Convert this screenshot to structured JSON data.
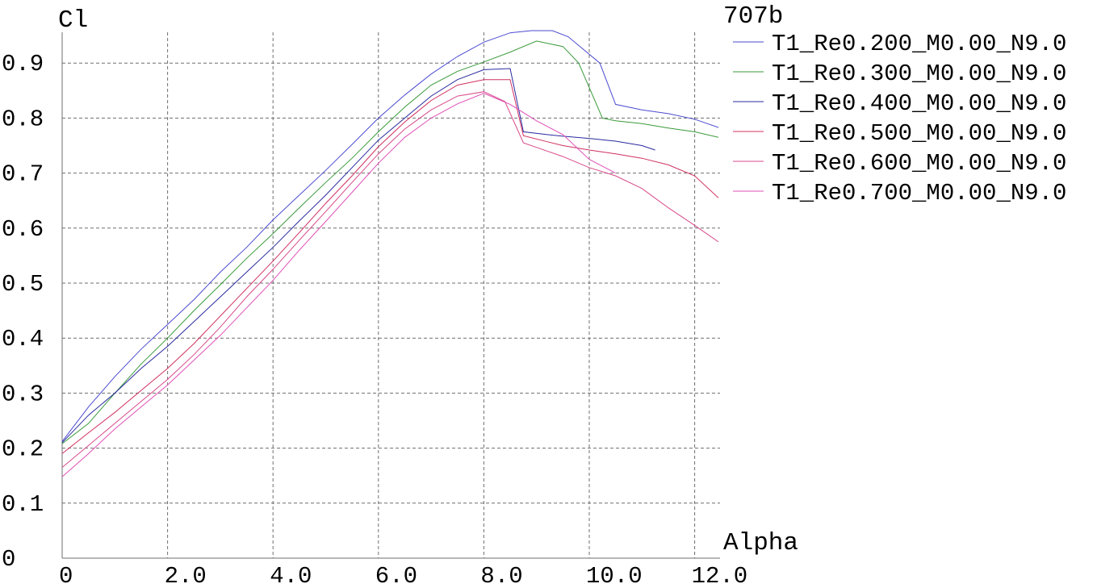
{
  "chart_data": {
    "type": "line",
    "title": "707b",
    "xlabel": "Alpha",
    "ylabel": "Cl",
    "xlim": [
      0,
      12.5
    ],
    "ylim": [
      0,
      0.95
    ],
    "grid": true,
    "legend_position": "top-right",
    "x_ticks": [
      {
        "value": 0,
        "label": "0"
      },
      {
        "value": 2,
        "label": "2.0"
      },
      {
        "value": 4,
        "label": "4.0"
      },
      {
        "value": 6,
        "label": "6.0"
      },
      {
        "value": 8,
        "label": "8.0"
      },
      {
        "value": 10,
        "label": "10.0"
      },
      {
        "value": 12,
        "label": "12.0"
      }
    ],
    "y_ticks": [
      {
        "value": 0,
        "label": "0"
      },
      {
        "value": 0.1,
        "label": "0.1"
      },
      {
        "value": 0.2,
        "label": "0.2"
      },
      {
        "value": 0.3,
        "label": "0.3"
      },
      {
        "value": 0.4,
        "label": "0.4"
      },
      {
        "value": 0.5,
        "label": "0.5"
      },
      {
        "value": 0.6,
        "label": "0.6"
      },
      {
        "value": 0.7,
        "label": "0.7"
      },
      {
        "value": 0.8,
        "label": "0.8"
      },
      {
        "value": 0.9,
        "label": "0.9"
      }
    ],
    "series": [
      {
        "name": "T1_Re0.200_M0.00_N9.0",
        "color": "#4b4bd2",
        "x": [
          0,
          0.5,
          1,
          1.5,
          2,
          2.5,
          3,
          3.5,
          4,
          4.5,
          5,
          5.5,
          6,
          6.5,
          7,
          7.5,
          8,
          8.5,
          8.9,
          9.3,
          9.6,
          10.2,
          10.5,
          11,
          11.5,
          12,
          12.45
        ],
        "y": [
          0.212,
          0.275,
          0.33,
          0.38,
          0.425,
          0.47,
          0.52,
          0.565,
          0.615,
          0.66,
          0.705,
          0.752,
          0.8,
          0.842,
          0.88,
          0.912,
          0.938,
          0.955,
          0.959,
          0.959,
          0.948,
          0.9,
          0.825,
          0.815,
          0.808,
          0.798,
          0.783
        ]
      },
      {
        "name": "T1_Re0.300_M0.00_N9.0",
        "color": "#3a9a3a",
        "x": [
          0,
          0.5,
          1,
          1.5,
          2,
          2.5,
          3,
          3.5,
          4,
          4.5,
          5,
          5.5,
          6,
          6.5,
          7,
          7.5,
          8,
          8.5,
          9,
          9.5,
          9.8,
          10.25,
          10.5,
          11,
          11.5,
          12,
          12.45
        ],
        "y": [
          0.208,
          0.245,
          0.3,
          0.353,
          0.4,
          0.45,
          0.497,
          0.545,
          0.59,
          0.637,
          0.683,
          0.727,
          0.775,
          0.82,
          0.86,
          0.885,
          0.902,
          0.92,
          0.94,
          0.93,
          0.9,
          0.8,
          0.795,
          0.79,
          0.782,
          0.775,
          0.765
        ]
      },
      {
        "name": "T1_Re0.400_M0.00_N9.0",
        "color": "#2a2aa0",
        "x": [
          0,
          0.5,
          1,
          1.5,
          2,
          2.5,
          3,
          3.5,
          4,
          4.5,
          5,
          5.5,
          6,
          6.5,
          7,
          7.5,
          8,
          8.5,
          8.75,
          9.2,
          9.5,
          10,
          10.5,
          11,
          11.25
        ],
        "y": [
          0.21,
          0.26,
          0.3,
          0.345,
          0.385,
          0.43,
          0.475,
          0.52,
          0.565,
          0.613,
          0.66,
          0.71,
          0.76,
          0.8,
          0.84,
          0.87,
          0.888,
          0.89,
          0.775,
          0.77,
          0.767,
          0.763,
          0.758,
          0.75,
          0.742
        ]
      },
      {
        "name": "T1_Re0.500_M0.00_N9.0",
        "color": "#d03060",
        "x": [
          0,
          0.5,
          1,
          1.5,
          2,
          2.5,
          3,
          3.5,
          4,
          4.5,
          5,
          5.5,
          6,
          6.5,
          7,
          7.5,
          8,
          8.5,
          8.75,
          9.2,
          9.5,
          10,
          10.5,
          11,
          11.5,
          12,
          12.45
        ],
        "y": [
          0.19,
          0.228,
          0.265,
          0.305,
          0.345,
          0.39,
          0.44,
          0.49,
          0.54,
          0.592,
          0.645,
          0.695,
          0.748,
          0.793,
          0.832,
          0.86,
          0.87,
          0.87,
          0.768,
          0.757,
          0.75,
          0.742,
          0.735,
          0.727,
          0.715,
          0.695,
          0.655
        ]
      },
      {
        "name": "T1_Re0.600_M0.00_N9.0",
        "color": "#d84a8a",
        "x": [
          0,
          0.5,
          1,
          1.5,
          2,
          2.5,
          3,
          3.5,
          4,
          4.5,
          5,
          5.5,
          6,
          6.5,
          7,
          7.5,
          8,
          8.4,
          8.75,
          9.2,
          9.5,
          10,
          10.5,
          11,
          11.5,
          12,
          12.45
        ],
        "y": [
          0.165,
          0.205,
          0.245,
          0.285,
          0.325,
          0.37,
          0.42,
          0.475,
          0.525,
          0.578,
          0.63,
          0.683,
          0.735,
          0.78,
          0.815,
          0.84,
          0.848,
          0.83,
          0.755,
          0.74,
          0.73,
          0.71,
          0.695,
          0.672,
          0.637,
          0.605,
          0.575
        ]
      },
      {
        "name": "T1_Re0.700_M0.00_N9.0",
        "color": "#e050b8",
        "x": [
          0,
          0.5,
          1,
          1.5,
          2,
          2.5,
          3,
          3.5,
          4,
          4.5,
          5,
          5.5,
          6,
          6.5,
          7,
          7.5,
          8,
          8.5,
          9,
          9.5,
          10,
          10.5
        ],
        "y": [
          0.148,
          0.19,
          0.235,
          0.275,
          0.315,
          0.36,
          0.405,
          0.455,
          0.505,
          0.56,
          0.612,
          0.665,
          0.718,
          0.765,
          0.8,
          0.826,
          0.845,
          0.825,
          0.795,
          0.77,
          0.725,
          0.7
        ]
      }
    ]
  }
}
